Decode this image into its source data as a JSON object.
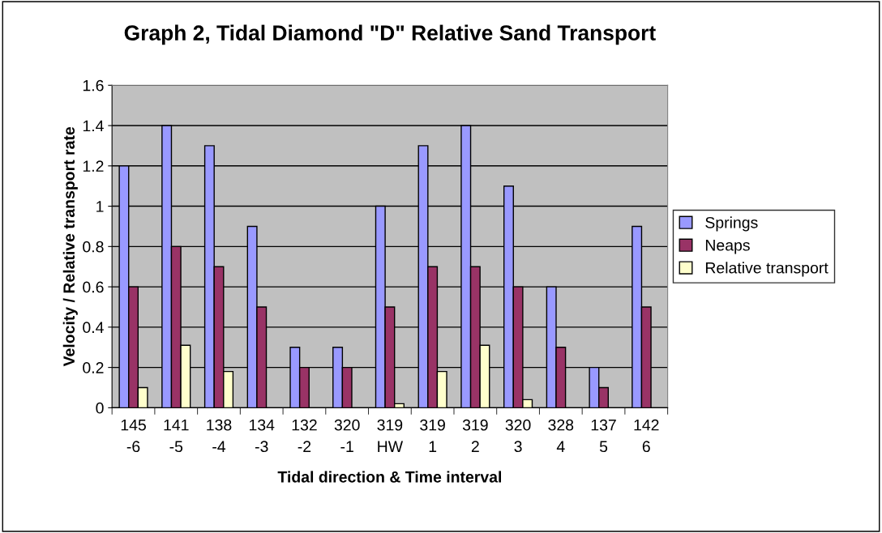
{
  "chart_data": {
    "type": "bar",
    "title": "Graph 2, Tidal Diamond \"D\" Relative Sand Transport",
    "xlabel": "Tidal direction & Time interval",
    "ylabel": "Velocity / Relative transport rate",
    "categories": [
      "145\n-6",
      "141\n-5",
      "138\n-4",
      "134\n-3",
      "132\n-2",
      "320\n-1",
      "319\nHW",
      "319\n1",
      "319\n2",
      "320\n3",
      "328\n4",
      "137\n5",
      "142\n6"
    ],
    "series": [
      {
        "name": "Springs",
        "color": "#9999ff",
        "values": [
          1.2,
          1.4,
          1.3,
          0.9,
          0.3,
          0.3,
          1.0,
          1.3,
          1.4,
          1.1,
          0.6,
          0.2,
          0.9
        ]
      },
      {
        "name": "Neaps",
        "color": "#993366",
        "values": [
          0.6,
          0.8,
          0.7,
          0.5,
          0.2,
          0.2,
          0.5,
          0.7,
          0.7,
          0.6,
          0.3,
          0.1,
          0.5
        ]
      },
      {
        "name": "Relative transport",
        "color": "#ffffcc",
        "values": [
          0.1,
          0.31,
          0.18,
          null,
          null,
          null,
          0.02,
          0.18,
          0.31,
          0.04,
          null,
          null,
          null
        ]
      }
    ],
    "ylim": [
      0,
      1.6
    ],
    "yticks": [
      0,
      0.2,
      0.4,
      0.6,
      0.8,
      1,
      1.2,
      1.4,
      1.6
    ],
    "grid": "y",
    "legend": "right"
  }
}
